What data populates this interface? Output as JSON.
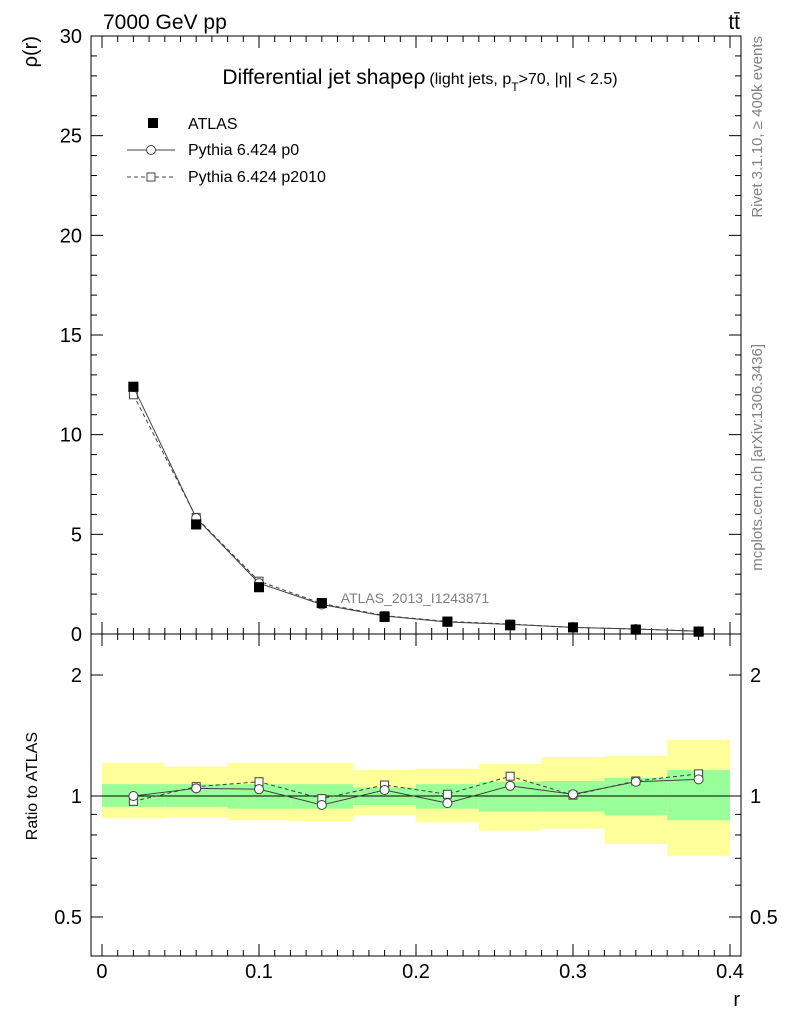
{
  "header": {
    "left": "7000 GeV pp",
    "right": "tt̄"
  },
  "side_text": {
    "rivet": "Rivet 3.1.10, ≥ 400k events",
    "mcplots": "mcplots.cern.ch [arXiv:1306.3436]"
  },
  "chart_data": [
    {
      "type": "scatter",
      "title": "Differential jet shapeρ",
      "title_small": "(light jets, p",
      "title_sub": "T",
      "title_end": ">70, |η| < 2.5)",
      "watermark": "ATLAS_2013_I1243871",
      "ylabel": "ρ(r)",
      "xlabel": "",
      "ylim": [
        0,
        30
      ],
      "xlim": [
        -0.007,
        0.407
      ],
      "yticks": [
        "0",
        "5",
        "10",
        "15",
        "20",
        "25",
        "30"
      ],
      "grid": false,
      "legend_position": "top-left",
      "x": [
        0.02,
        0.06,
        0.1,
        0.14,
        0.18,
        0.22,
        0.26,
        0.3,
        0.34,
        0.38
      ],
      "series": [
        {
          "name": "ATLAS",
          "marker": "filled-square",
          "values": [
            12.4,
            5.5,
            2.35,
            1.55,
            0.86,
            0.62,
            0.44,
            0.33,
            0.22,
            0.12
          ]
        },
        {
          "name": "Pythia 6.424 p0",
          "marker": "open-circle",
          "line": "solid",
          "values": [
            12.4,
            5.82,
            2.55,
            1.48,
            0.9,
            0.6,
            0.48,
            0.33,
            0.25,
            0.14
          ]
        },
        {
          "name": "Pythia 6.424 p2010",
          "marker": "open-square",
          "line": "dashed",
          "values": [
            12.0,
            5.85,
            2.65,
            1.53,
            0.92,
            0.63,
            0.5,
            0.33,
            0.25,
            0.14
          ]
        }
      ]
    },
    {
      "type": "scatter",
      "ylabel": "Ratio to ATLAS",
      "xlabel": "r",
      "ylim": [
        0.42,
        2.25
      ],
      "xlim": [
        -0.007,
        0.407
      ],
      "xticks": [
        "0",
        "0.1",
        "0.2",
        "0.3",
        "0.4"
      ],
      "yticks": [
        "0.5",
        "1",
        "2"
      ],
      "grid": false,
      "bin_edges": [
        0.0,
        0.04,
        0.08,
        0.12,
        0.16,
        0.2,
        0.24,
        0.28,
        0.32,
        0.36,
        0.4
      ],
      "band_colors": {
        "inner": "#99ff99",
        "outer": "#ffff99"
      },
      "inner_band": {
        "low": [
          0.94,
          0.94,
          0.93,
          0.93,
          0.95,
          0.93,
          0.915,
          0.915,
          0.895,
          0.87
        ],
        "high": [
          1.07,
          1.07,
          1.07,
          1.07,
          1.05,
          1.07,
          1.085,
          1.09,
          1.11,
          1.16
        ]
      },
      "outer_band": {
        "low": [
          0.88,
          0.885,
          0.87,
          0.865,
          0.895,
          0.86,
          0.82,
          0.83,
          0.76,
          0.71
        ],
        "high": [
          1.21,
          1.185,
          1.21,
          1.21,
          1.16,
          1.17,
          1.2,
          1.25,
          1.26,
          1.38
        ]
      },
      "series": [
        {
          "name": "Pythia 6.424 p0",
          "marker": "open-circle",
          "line": "solid",
          "values": [
            1.0,
            1.045,
            1.04,
            0.95,
            1.035,
            0.96,
            1.06,
            1.01,
            1.085,
            1.1
          ]
        },
        {
          "name": "Pythia 6.424 p2010",
          "marker": "open-square",
          "line": "dashed",
          "values": [
            0.97,
            1.055,
            1.085,
            0.985,
            1.065,
            1.01,
            1.12,
            1.005,
            1.09,
            1.135
          ]
        }
      ]
    }
  ]
}
